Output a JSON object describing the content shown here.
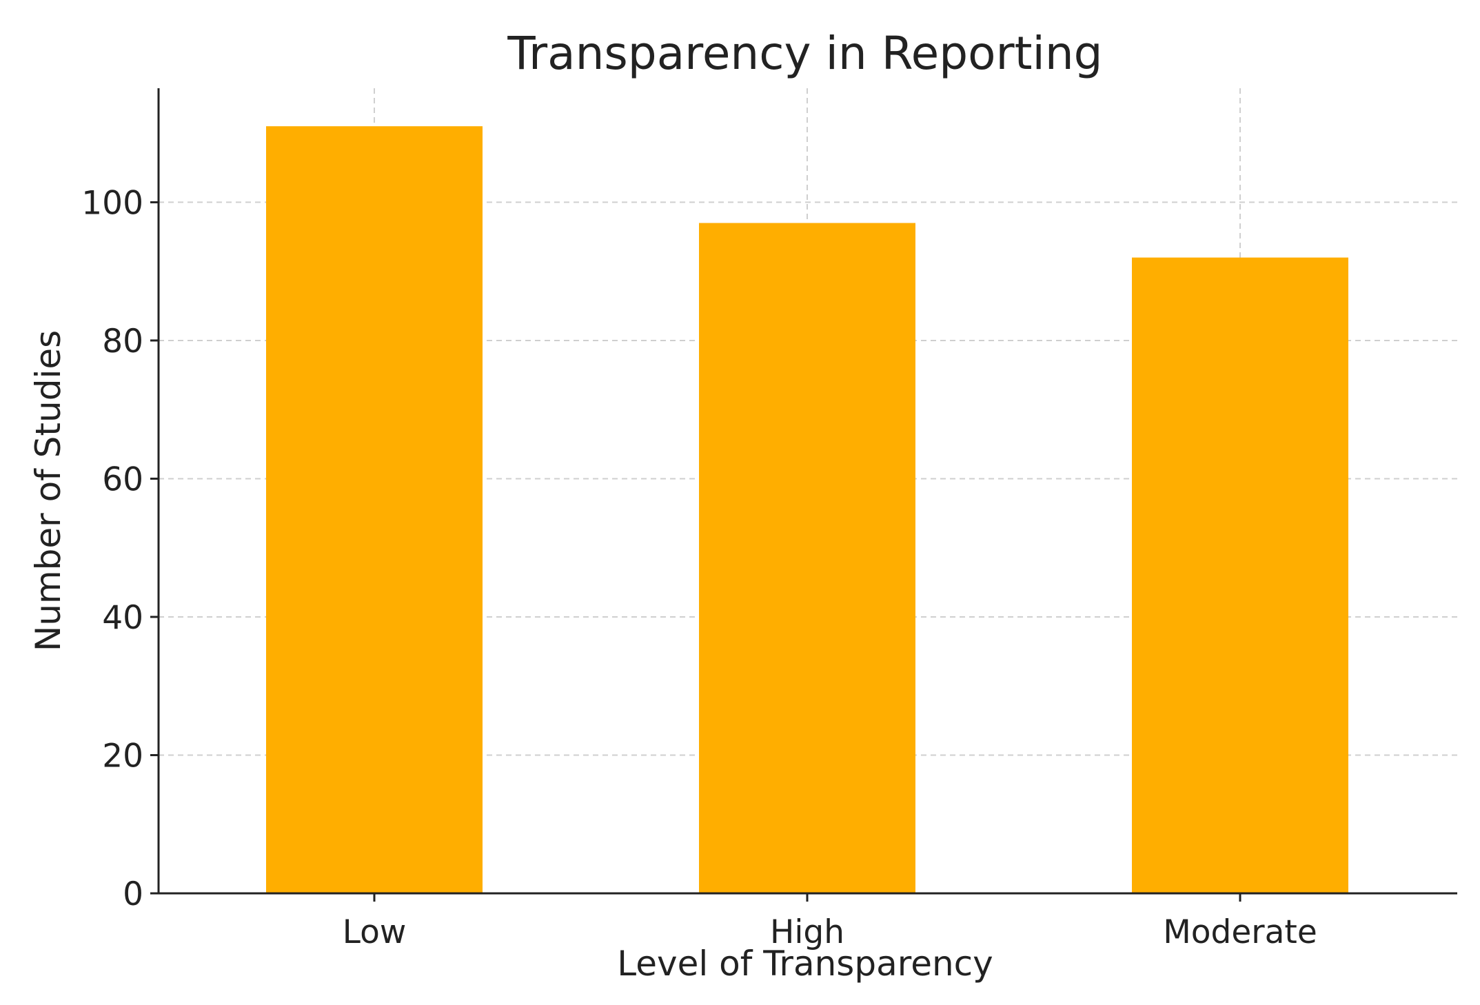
{
  "chart_data": {
    "type": "bar",
    "title": "Transparency in Reporting",
    "xlabel": "Level of Transparency",
    "ylabel": "Number of Studies",
    "categories": [
      "Low",
      "High",
      "Moderate"
    ],
    "values": [
      111,
      97,
      92
    ],
    "ylim": [
      0,
      116.5
    ],
    "yticks": [
      0,
      20,
      40,
      60,
      80,
      100
    ],
    "ytick_labels": [
      "0",
      "20",
      "40",
      "60",
      "80",
      "100"
    ],
    "bar_color": "#FFAE00",
    "grid": true,
    "legend": "none"
  }
}
